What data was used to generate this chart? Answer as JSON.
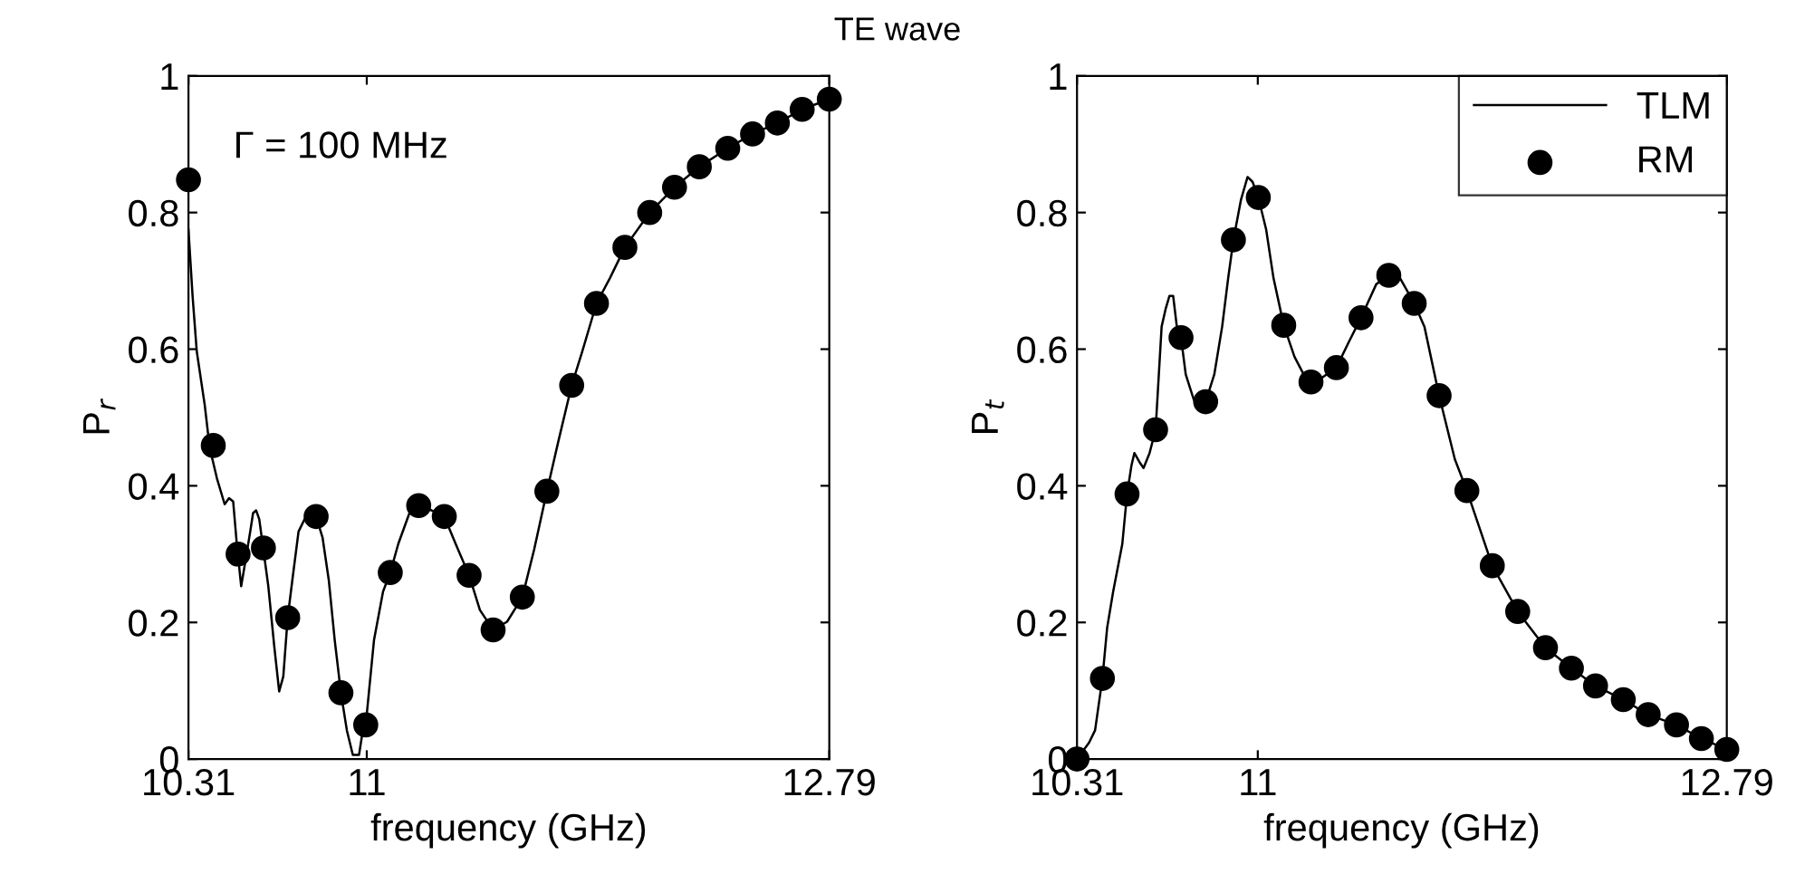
{
  "chart_data": [
    {
      "type": "line",
      "title": "TE wave",
      "xlabel": "frequency (GHz)",
      "ylabel": "P$_{r}$",
      "xlim": [
        10.31,
        12.79
      ],
      "ylim": [
        0,
        1
      ],
      "xticks": [
        10.31,
        11,
        12.79
      ],
      "yticks": [
        0,
        0.2,
        0.4,
        0.6,
        0.8,
        1
      ],
      "grid": false,
      "legend": false,
      "annotations": [
        "Γ = 100 MHz"
      ],
      "series": [
        {
          "type": "line",
          "color": "#000000",
          "line_style": "solid",
          "marker": "none",
          "x": [
            10.31,
            10.326,
            10.342,
            10.373,
            10.392,
            10.42,
            10.45,
            10.467,
            10.483,
            10.497,
            10.514,
            10.53,
            10.549,
            10.56,
            10.572,
            10.584,
            10.6,
            10.619,
            10.642,
            10.661,
            10.677,
            10.694,
            10.712,
            10.736,
            10.771,
            10.804,
            10.829,
            10.853,
            10.876,
            10.9,
            10.923,
            10.946,
            10.97,
            10.981,
            10.996,
            11.028,
            11.063,
            11.091,
            11.122,
            11.169,
            11.201,
            11.251,
            11.3,
            11.344,
            11.396,
            11.438,
            11.489,
            11.543,
            11.602,
            11.648,
            11.697,
            11.742,
            11.793,
            11.835,
            11.889,
            11.941,
            11.999,
            12.095,
            12.191,
            12.287,
            12.397,
            12.493,
            12.589,
            12.685,
            12.79
          ],
          "values": [
            0.775,
            0.677,
            0.597,
            0.518,
            0.456,
            0.411,
            0.373,
            0.382,
            0.377,
            0.315,
            0.253,
            0.289,
            0.333,
            0.36,
            0.364,
            0.351,
            0.306,
            0.253,
            0.165,
            0.099,
            0.121,
            0.207,
            0.262,
            0.333,
            0.36,
            0.355,
            0.324,
            0.262,
            0.174,
            0.097,
            0.042,
            0.006,
            0.006,
            0.033,
            0.05,
            0.174,
            0.245,
            0.273,
            0.315,
            0.364,
            0.371,
            0.364,
            0.355,
            0.315,
            0.269,
            0.218,
            0.189,
            0.201,
            0.237,
            0.307,
            0.392,
            0.466,
            0.547,
            0.598,
            0.667,
            0.704,
            0.749,
            0.8,
            0.837,
            0.867,
            0.894,
            0.915,
            0.931,
            0.951,
            0.966
          ]
        },
        {
          "type": "scatter",
          "color": "#000000",
          "marker": "circle",
          "x": [
            10.31,
            10.406,
            10.502,
            10.6,
            10.694,
            10.804,
            10.9,
            10.996,
            11.091,
            11.201,
            11.3,
            11.396,
            11.489,
            11.602,
            11.697,
            11.793,
            11.889,
            11.999,
            12.095,
            12.191,
            12.287,
            12.397,
            12.493,
            12.589,
            12.685,
            12.79
          ],
          "values": [
            0.848,
            0.459,
            0.3,
            0.309,
            0.207,
            0.355,
            0.097,
            0.05,
            0.273,
            0.371,
            0.355,
            0.269,
            0.189,
            0.237,
            0.392,
            0.547,
            0.667,
            0.749,
            0.8,
            0.837,
            0.867,
            0.894,
            0.915,
            0.931,
            0.951,
            0.966
          ]
        }
      ]
    },
    {
      "type": "line",
      "xlabel": "frequency (GHz)",
      "ylabel": "P$_{t}$",
      "xlim": [
        10.31,
        12.79
      ],
      "ylim": [
        0,
        1
      ],
      "xticks": [
        10.31,
        11,
        12.79
      ],
      "yticks": [
        0,
        0.2,
        0.4,
        0.6,
        0.8,
        1
      ],
      "grid": false,
      "legend": "top right",
      "series": [
        {
          "type": "line",
          "name": "TLM",
          "color": "#000000",
          "line_style": "solid",
          "marker": "none",
          "x": [
            10.31,
            10.356,
            10.379,
            10.407,
            10.425,
            10.448,
            10.483,
            10.501,
            10.518,
            10.529,
            10.548,
            10.564,
            10.587,
            10.61,
            10.633,
            10.649,
            10.663,
            10.677,
            10.691,
            10.707,
            10.725,
            10.755,
            10.778,
            10.801,
            10.834,
            10.864,
            10.887,
            10.907,
            10.936,
            10.961,
            10.98,
            11.002,
            11.032,
            11.06,
            11.099,
            11.14,
            11.175,
            11.203,
            11.244,
            11.3,
            11.348,
            11.394,
            11.452,
            11.5,
            11.543,
            11.597,
            11.636,
            11.692,
            11.752,
            11.798,
            11.895,
            11.992,
            12.098,
            12.197,
            12.289,
            12.395,
            12.49,
            12.598,
            12.693,
            12.79
          ],
          "values": [
            0,
            0.024,
            0.042,
            0.118,
            0.192,
            0.245,
            0.315,
            0.388,
            0.43,
            0.448,
            0.435,
            0.426,
            0.448,
            0.482,
            0.633,
            0.66,
            0.678,
            0.678,
            0.633,
            0.617,
            0.563,
            0.527,
            0.51,
            0.523,
            0.563,
            0.633,
            0.704,
            0.76,
            0.819,
            0.852,
            0.845,
            0.822,
            0.775,
            0.704,
            0.635,
            0.589,
            0.563,
            0.552,
            0.558,
            0.573,
            0.611,
            0.646,
            0.695,
            0.708,
            0.704,
            0.667,
            0.633,
            0.532,
            0.439,
            0.393,
            0.283,
            0.216,
            0.163,
            0.133,
            0.107,
            0.087,
            0.065,
            0.05,
            0.03,
            0.014
          ]
        },
        {
          "type": "scatter",
          "name": "RM",
          "color": "#000000",
          "marker": "circle",
          "x": [
            10.31,
            10.407,
            10.501,
            10.61,
            10.707,
            10.801,
            10.907,
            11.002,
            11.099,
            11.203,
            11.3,
            11.394,
            11.5,
            11.597,
            11.692,
            11.798,
            11.895,
            11.992,
            12.098,
            12.197,
            12.289,
            12.395,
            12.49,
            12.598,
            12.693,
            12.79
          ],
          "values": [
            0,
            0.118,
            0.388,
            0.482,
            0.617,
            0.523,
            0.76,
            0.822,
            0.635,
            0.552,
            0.573,
            0.646,
            0.708,
            0.667,
            0.532,
            0.393,
            0.283,
            0.216,
            0.163,
            0.133,
            0.107,
            0.087,
            0.065,
            0.05,
            0.03,
            0.014
          ]
        }
      ]
    }
  ]
}
